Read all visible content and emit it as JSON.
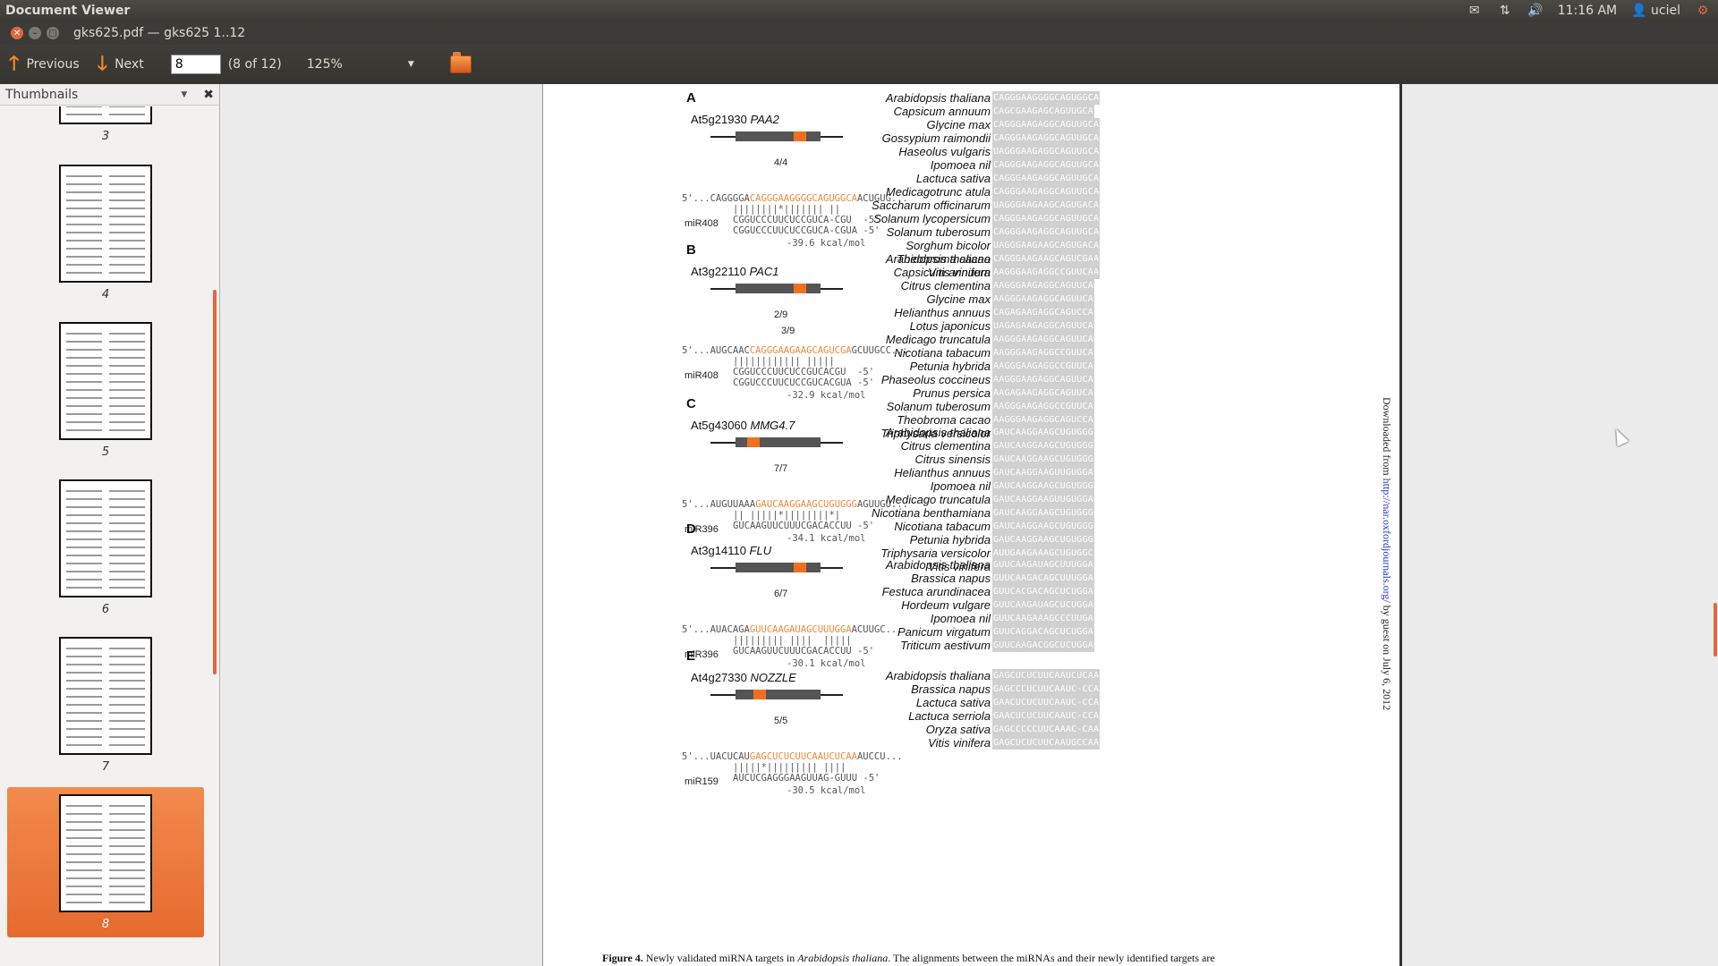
{
  "top_panel": {
    "app_title": "Document Viewer",
    "time": "11:16 AM",
    "user": "uciel",
    "icons": [
      "mail-icon",
      "network-icon",
      "volume-icon",
      "user-icon",
      "power-icon"
    ]
  },
  "window": {
    "title": "gks625.pdf — gks625 1..12"
  },
  "toolbar": {
    "previous_label": "Previous",
    "next_label": "Next",
    "page_value": "8",
    "page_count": "(8 of 12)",
    "zoom": "125%"
  },
  "sidebar": {
    "title": "Thumbnails",
    "thumbnails": [
      {
        "label": "3"
      },
      {
        "label": "4"
      },
      {
        "label": "5"
      },
      {
        "label": "6"
      },
      {
        "label": "7"
      },
      {
        "label": "8",
        "selected": true
      }
    ]
  },
  "figure": {
    "panels": [
      {
        "letter": "A",
        "gene_id": "At5g21930",
        "gene_name": "PAA2",
        "ratio": "4/4",
        "target_pre": "5'...CAGGGGA",
        "target_site": "CAGGGAAGGGGCAGUGGCA",
        "target_post": "ACUGUG...",
        "pairing": "||||||||*||||||| ||",
        "mirna_label": "miR408",
        "mirna_seq1": "CGGUCCCUUCUCCGUCA-CGU  -5'",
        "mirna_seq2": "CGGUCCCUUCUCCGUCA-CGUA -5'",
        "energy": "-39.6 kcal/mol",
        "species": [
          {
            "name": "Arabidopsis thaliana",
            "seq": "CAGGGAAGGGGCAGUGGCA"
          },
          {
            "name": "Capsicum annuum",
            "seq": "CAGCGAAGAGCAGUUGCA"
          },
          {
            "name": "Glycine max",
            "seq": "CAGGGAAGAGGCAGUUGCA"
          },
          {
            "name": "Gossypium raimondii",
            "seq": "CAGGGAAGAGGCAGUUGCA"
          },
          {
            "name": "Haseolus vulgaris",
            "seq": "UAGGGAAGAGGCAGUUGCA"
          },
          {
            "name": "Ipomoea nil",
            "seq": "CAGGGAAGAGGCAGUUGCA"
          },
          {
            "name": "Lactuca sativa",
            "seq": "CAGGGAAGAGGCAGUUGCA"
          },
          {
            "name": "Medicagotrunc atula",
            "seq": "CAGGGAAGAGGCAGUUGCA"
          },
          {
            "name": "Saccharum officinarum",
            "seq": "UAGGGAAGAAGCAGUGACA"
          },
          {
            "name": "Solanum lycopersicum",
            "seq": "CAGGGAAGAGGCAGUUGCA"
          },
          {
            "name": "Solanum tuberosum",
            "seq": "CAGGGAAGAGGCAGUUGCA"
          },
          {
            "name": "Sorghum bicolor",
            "seq": "UAGGGAAGAAGCAGUGACA"
          },
          {
            "name": "Theobroma cacao",
            "seq": "CAGGGAAGAGGCAGUUGCA"
          },
          {
            "name": "Vitis vinifera",
            "seq": "CAGGGAAGAGGCAGUUGCA"
          }
        ]
      },
      {
        "letter": "B",
        "gene_id": "At3g22110",
        "gene_name": "PAC1",
        "ratio": "2/9",
        "ratio2": "3/9",
        "target_pre": "5'...AUGCAAC",
        "target_site": "CAGGGAAGAAGCAGUCGA",
        "target_post": "GCUUGCC...",
        "pairing": "|||||||||||| |||||",
        "mirna_label": "miR408",
        "mirna_seq1": "CGGUCCCUUCUCCGUCACGU  -5'",
        "mirna_seq2": "CGGUCCCUUCUCCGUCACGUA -5'",
        "energy": "-32.9 kcal/mol",
        "species": [
          {
            "name": "Arabidopsis thaliana",
            "seq": "CAGGGAAGAAGCAGUCGA"
          },
          {
            "name": "Capsicum annuum",
            "seq": "AAGGGAAGAGGCCGUUCA"
          },
          {
            "name": "Citrus clementina",
            "seq": "AAGGGAAGAGGCAGUUCA"
          },
          {
            "name": "Glycine max",
            "seq": "AAGGGAAGAGGCAGUUCA"
          },
          {
            "name": "Helianthus annuus",
            "seq": "CAGAGAAGAGGCAGUCCA"
          },
          {
            "name": "Lotus japonicus",
            "seq": "UAGAGAAGAGGCAGUUCA"
          },
          {
            "name": "Medicago truncatula",
            "seq": "AAGGGAAGAGGCAGUUCA"
          },
          {
            "name": "Nicotiana tabacum",
            "seq": "AAGGGAAGAGGCCGUUCA"
          },
          {
            "name": "Petunia hybrida",
            "seq": "AAGGGAAGAGGCCGUUCA"
          },
          {
            "name": "Phaseolus coccineus",
            "seq": "AAGGGAAGAGGCAGUUCA"
          },
          {
            "name": "Prunus persica",
            "seq": "AAGAGAAGAGGCAGUUCA"
          },
          {
            "name": "Solanum tuberosum",
            "seq": "AAGGGAAGAGGCCGUUCA"
          },
          {
            "name": "Theobroma cacao",
            "seq": "AAGGGAAGAGGCAGUCCA"
          },
          {
            "name": "Triphysaria versicolor",
            "seq": "CAGGGAGGAGGCUGUUCA"
          }
        ]
      },
      {
        "letter": "C",
        "gene_id": "At5g43060",
        "gene_name": "MMG4.7",
        "ratio": "7/7",
        "target_pre": "5'...AUGUUAAA",
        "target_site": "GAUCAAGGAAGCUGUGGG",
        "target_post": "AGUUGU...",
        "pairing": "|| |||||*||||||||*|",
        "mirna_label": "miR396",
        "mirna_seq1": "GUCAAGUUCUUUCGACACCUU -5'",
        "mirna_seq2": "",
        "energy": "-34.1 kcal/mol",
        "species": [
          {
            "name": "Arabidopsis thaliana",
            "seq": "GAUCAAGGAAGCUGUGGG"
          },
          {
            "name": "Citrus clementina",
            "seq": "GAUCAAGGAAGCUGUGGG"
          },
          {
            "name": "Citrus sinensis",
            "seq": "GAUCAAGGAAGCUGUGGG"
          },
          {
            "name": "Helianthus annuus",
            "seq": "GAUCAAGGAAGUUGUGGA"
          },
          {
            "name": "Ipomoea nil",
            "seq": "GAUCAAGGAAGCUGUGGG"
          },
          {
            "name": "Medicago truncatula",
            "seq": "GAUCAAGGAAGUUGUGGA"
          },
          {
            "name": "Nicotiana benthamiana",
            "seq": "GAUCAAGGAAGCUGUGGG"
          },
          {
            "name": "Nicotiana tabacum",
            "seq": "GAUCAAGGAAGCUGUGGG"
          },
          {
            "name": "Petunia hybrida",
            "seq": "GAUCAAGGAAGCUGUGGG"
          },
          {
            "name": "Triphysaria versicolor",
            "seq": "AUUGAAGAAAGCUGUGGC"
          },
          {
            "name": "Vitis vinifera",
            "seq": "CUUGAAGAAAGCUGUGGC"
          }
        ]
      },
      {
        "letter": "D",
        "gene_id": "At3g14110",
        "gene_name": "FLU",
        "ratio": "6/7",
        "target_pre": "5'...AUACAGA",
        "target_site": "GUUCAAGAUAGCUUUGGA",
        "target_post": "ACUUGC...",
        "pairing": "||||||||| ||||  |||||",
        "mirna_label": "miR396",
        "mirna_seq1": "GUCAAGUUCUUUCGACACCUU -5'",
        "mirna_seq2": "",
        "energy": "-30.1 kcal/mol",
        "species": [
          {
            "name": "Arabidopsis thaliana",
            "seq": "GUUCAAGAUAGCUUUGGA"
          },
          {
            "name": "Brassica napus",
            "seq": "GUUCAAGACAGCUUUGGA"
          },
          {
            "name": "Festuca arundinacea",
            "seq": "GUUCACGACAGCUCUGGA"
          },
          {
            "name": "Hordeum vulgare",
            "seq": "GUUCAAGAUAGCUCUGGA"
          },
          {
            "name": "Ipomoea nil",
            "seq": "GUUCAAGAAAGCCCUUGA"
          },
          {
            "name": "Panicum virgatum",
            "seq": "GUUCAGGACAGCUCUGGA"
          },
          {
            "name": "Triticum aestivum",
            "seq": "GUUCAAGACGGCUCUGGA"
          }
        ]
      },
      {
        "letter": "E",
        "gene_id": "At4g27330",
        "gene_name": "NOZZLE",
        "ratio": "5/5",
        "target_pre": "5'...UACUCAU",
        "target_site": "GAGCUCUCUUCAAUCUCAA",
        "target_post": "AUCCU...",
        "pairing": "|||||*||||||||| ||||",
        "mirna_label": "miR159",
        "mirna_seq1": "AUCUCGAGGGAAGUUAG-GUUU -5'",
        "mirna_seq2": "",
        "energy": "-30.5 kcal/mol",
        "species": [
          {
            "name": "Arabidopsis thaliana",
            "seq": "GAGCUCUCUUCAAUCUCAA"
          },
          {
            "name": "Brassica napus",
            "seq": "GAGCCCUCUUCAAUC-CCA"
          },
          {
            "name": "Lactuca sativa",
            "seq": "GAACUCUCUUCAAUC-CCA"
          },
          {
            "name": "Lactuca serriola",
            "seq": "GAACUCUCUUCAAUC-CCA"
          },
          {
            "name": "Oryza sativa",
            "seq": "GAGCCCCCUUCAAAC-CAA"
          },
          {
            "name": "Vitis vinifera",
            "seq": "GAGCUCUCUUCAAUGCCAA"
          }
        ]
      }
    ],
    "side_note_prefix": "Downloaded from ",
    "side_note_link": "http://nar.oxfordjournals.org/",
    "side_note_suffix": " by guest on July 6, 2012",
    "caption_label": "Figure 4.",
    "caption_text": " Newly validated miRNA targets in ",
    "caption_species": "Arabidopsis thaliana",
    "caption_rest": ". The alignments between the miRNAs and their newly identified targets are"
  }
}
